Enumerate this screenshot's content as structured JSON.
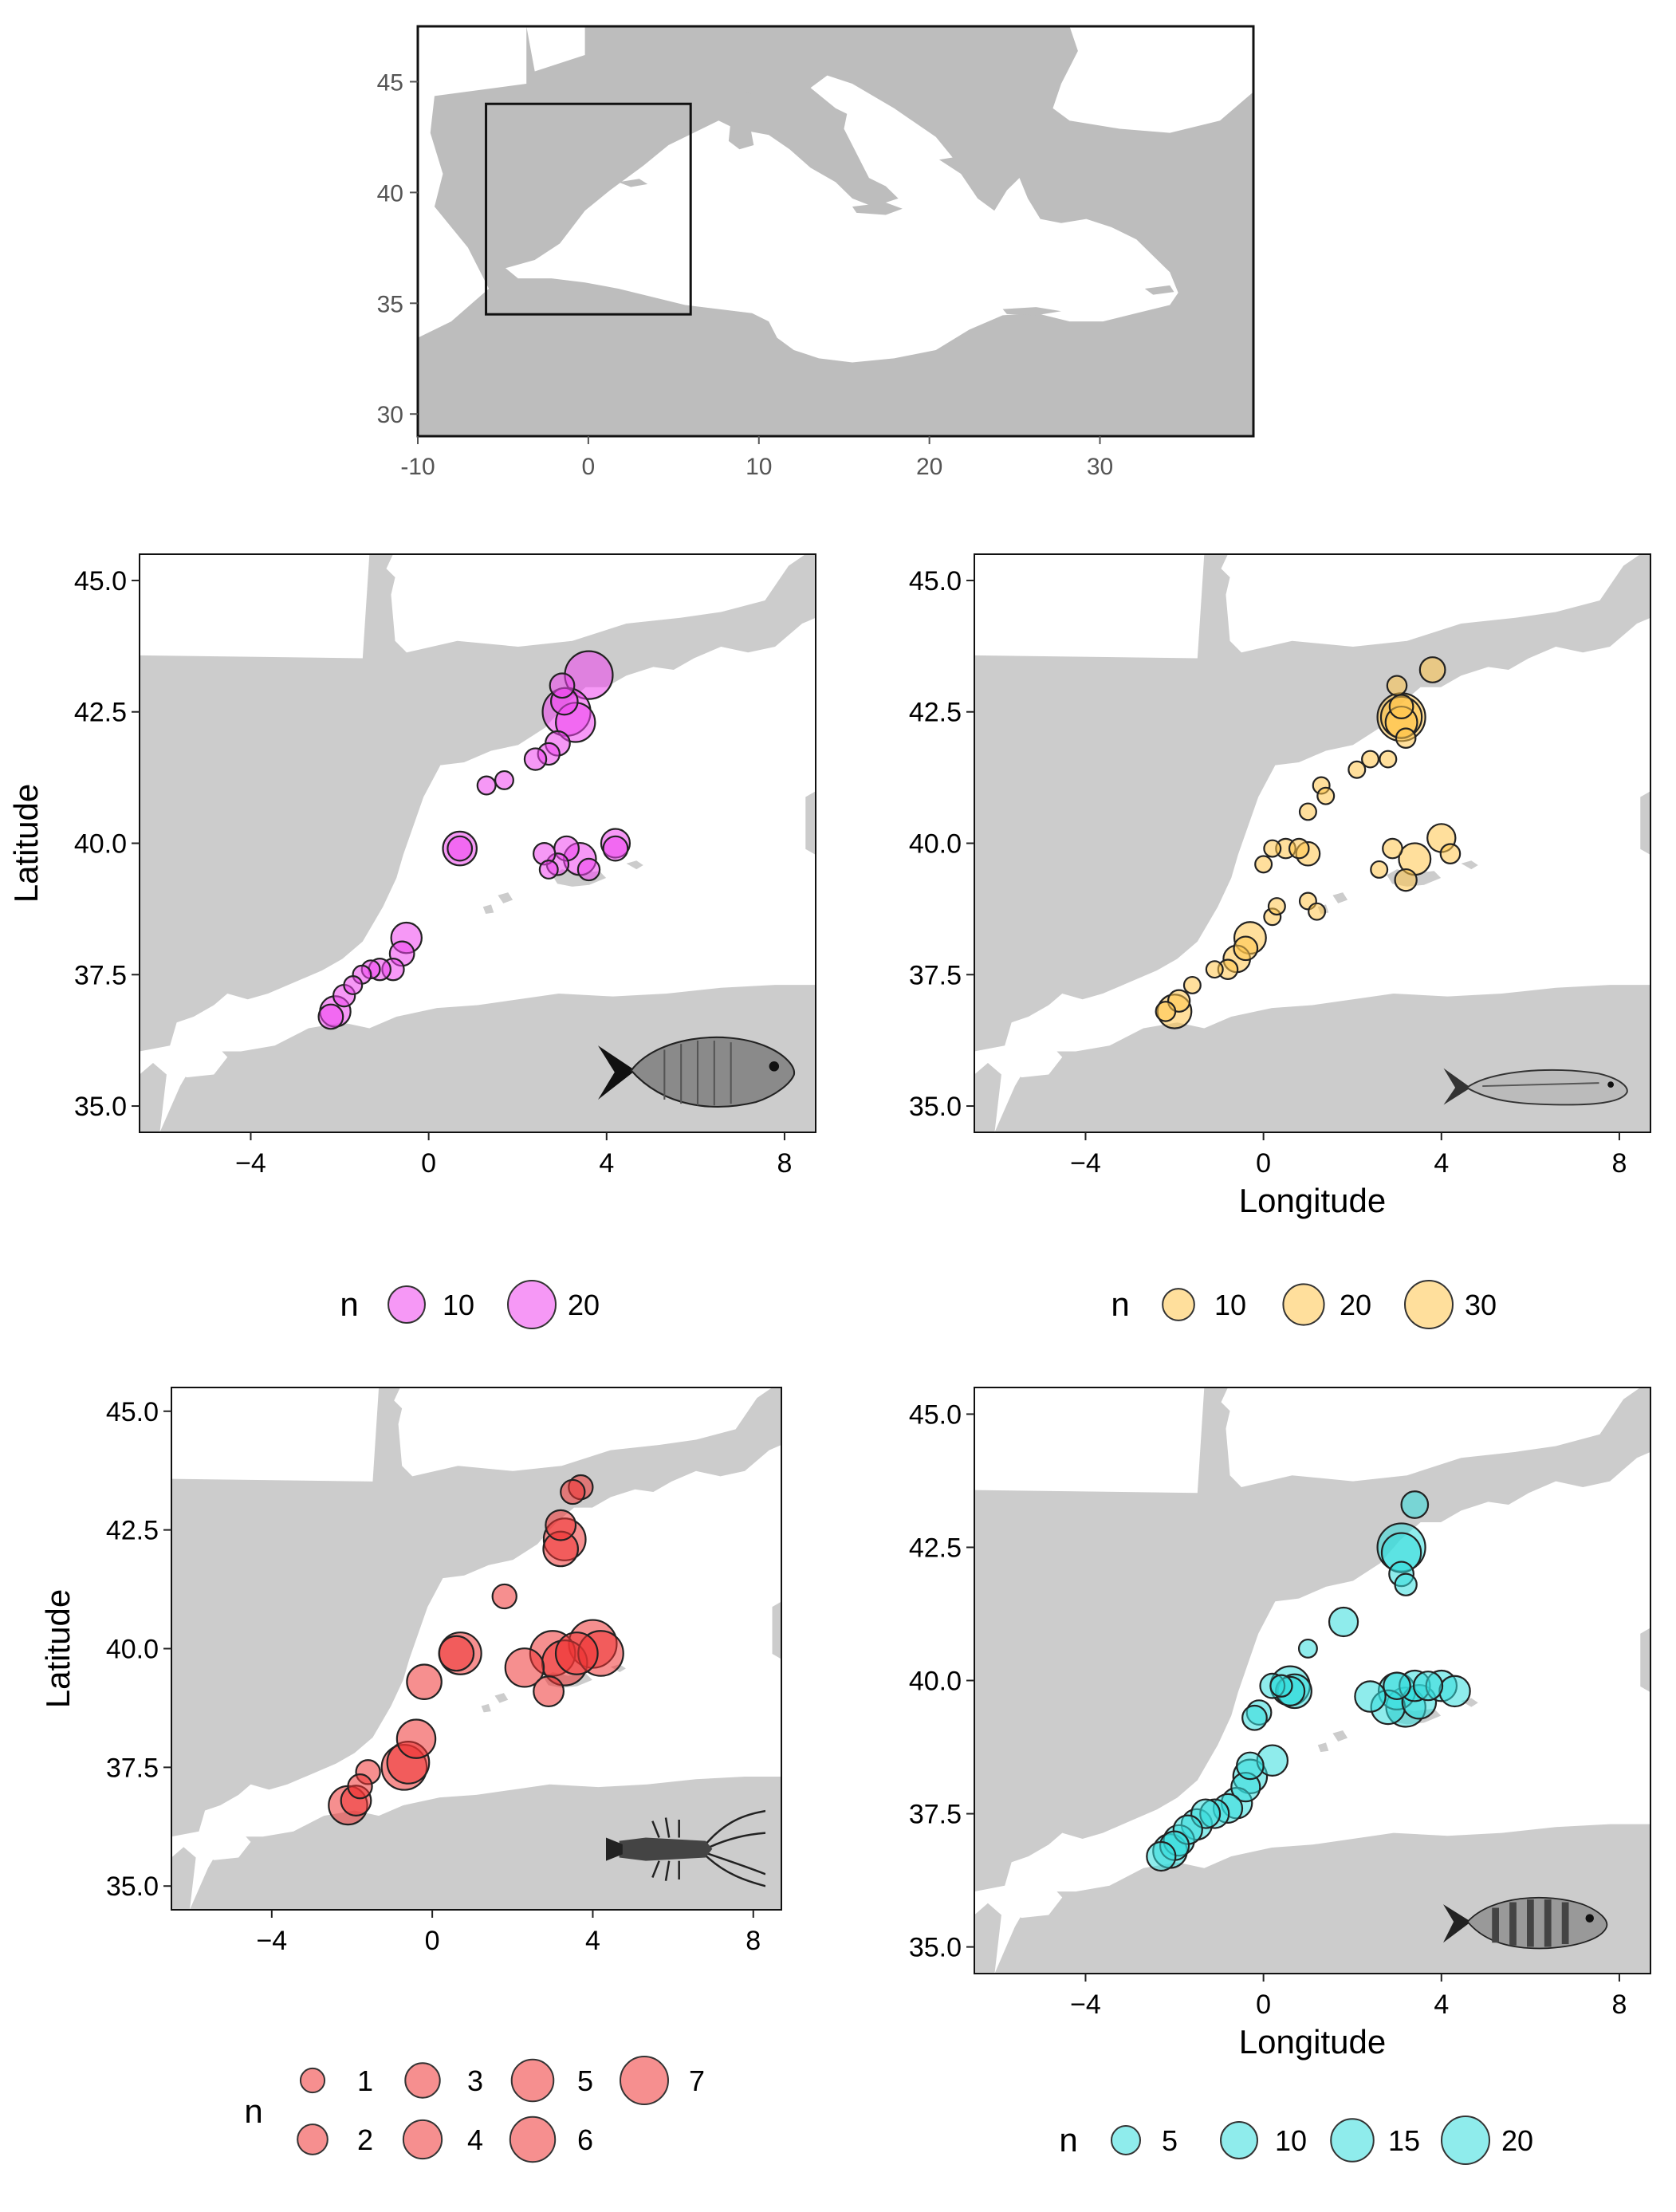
{
  "overview": {
    "x_ticks": [
      "-10",
      "0",
      "10",
      "20",
      "30"
    ],
    "y_ticks": [
      "30",
      "35",
      "40",
      "45"
    ],
    "lon_range": [
      -10,
      39
    ],
    "lat_range": [
      29,
      47.5
    ],
    "study_box": {
      "lon": [
        -6,
        6
      ],
      "lat": [
        34.5,
        44
      ]
    }
  },
  "panels": [
    {
      "id": "sparidae",
      "color": "#ee44ee",
      "silhouette": "seabream-icon",
      "x_ticks": [
        "−4",
        "0",
        "4",
        "8"
      ],
      "y_ticks": [
        "35.0",
        "37.5",
        "40.0",
        "42.5",
        "45.0"
      ],
      "ylabel": "Latitude",
      "xlabel": "",
      "legend": {
        "title": "n",
        "items": [
          {
            "label": "10",
            "n": 10
          },
          {
            "label": "20",
            "n": 20
          }
        ]
      },
      "points": [
        {
          "lon": 3.6,
          "lat": 43.2,
          "n": 20
        },
        {
          "lon": 3.1,
          "lat": 42.5,
          "n": 20
        },
        {
          "lon": 3.3,
          "lat": 42.3,
          "n": 12
        },
        {
          "lon": 3.0,
          "lat": 43.0,
          "n": 3
        },
        {
          "lon": 3.05,
          "lat": 42.7,
          "n": 4
        },
        {
          "lon": 2.9,
          "lat": 41.9,
          "n": 3
        },
        {
          "lon": 2.7,
          "lat": 41.7,
          "n": 2
        },
        {
          "lon": 2.4,
          "lat": 41.6,
          "n": 2
        },
        {
          "lon": 1.7,
          "lat": 41.2,
          "n": 1
        },
        {
          "lon": 1.3,
          "lat": 41.1,
          "n": 1
        },
        {
          "lon": 0.7,
          "lat": 39.9,
          "n": 8
        },
        {
          "lon": 0.7,
          "lat": 39.9,
          "n": 3
        },
        {
          "lon": 3.4,
          "lat": 39.7,
          "n": 7
        },
        {
          "lon": 3.1,
          "lat": 39.9,
          "n": 3
        },
        {
          "lon": 2.9,
          "lat": 39.6,
          "n": 2
        },
        {
          "lon": 3.6,
          "lat": 39.5,
          "n": 2
        },
        {
          "lon": 2.6,
          "lat": 39.8,
          "n": 2
        },
        {
          "lon": 2.7,
          "lat": 39.5,
          "n": 1
        },
        {
          "lon": 4.2,
          "lat": 40.0,
          "n": 5
        },
        {
          "lon": 4.2,
          "lat": 39.9,
          "n": 3
        },
        {
          "lon": -0.5,
          "lat": 38.2,
          "n": 6
        },
        {
          "lon": -0.6,
          "lat": 37.9,
          "n": 3
        },
        {
          "lon": -0.8,
          "lat": 37.6,
          "n": 2
        },
        {
          "lon": -1.1,
          "lat": 37.6,
          "n": 2
        },
        {
          "lon": -1.3,
          "lat": 37.6,
          "n": 1
        },
        {
          "lon": -1.5,
          "lat": 37.5,
          "n": 1
        },
        {
          "lon": -1.7,
          "lat": 37.3,
          "n": 1
        },
        {
          "lon": -1.9,
          "lat": 37.1,
          "n": 2
        },
        {
          "lon": -2.1,
          "lat": 36.8,
          "n": 6
        },
        {
          "lon": -2.2,
          "lat": 36.7,
          "n": 3
        }
      ]
    },
    {
      "id": "mullidae",
      "color": "#ffc54a",
      "silhouette": "mullet-icon",
      "x_ticks": [
        "−4",
        "0",
        "4",
        "8"
      ],
      "y_ticks": [
        "35.0",
        "37.5",
        "40.0",
        "42.5",
        "45.0"
      ],
      "ylabel": "",
      "xlabel": "Longitude",
      "legend": {
        "title": "n",
        "items": [
          {
            "label": "10",
            "n": 10
          },
          {
            "label": "20",
            "n": 20
          },
          {
            "label": "30",
            "n": 30
          }
        ]
      },
      "points": [
        {
          "lon": 3.1,
          "lat": 42.4,
          "n": 30
        },
        {
          "lon": 3.1,
          "lat": 42.4,
          "n": 20
        },
        {
          "lon": 3.1,
          "lat": 42.3,
          "n": 10
        },
        {
          "lon": 3.1,
          "lat": 42.6,
          "n": 4
        },
        {
          "lon": 3.0,
          "lat": 43.0,
          "n": 2
        },
        {
          "lon": 3.8,
          "lat": 43.3,
          "n": 5
        },
        {
          "lon": 3.2,
          "lat": 42.0,
          "n": 2
        },
        {
          "lon": 2.8,
          "lat": 41.6,
          "n": 1
        },
        {
          "lon": 2.4,
          "lat": 41.6,
          "n": 1
        },
        {
          "lon": 2.1,
          "lat": 41.4,
          "n": 1
        },
        {
          "lon": 1.3,
          "lat": 41.1,
          "n": 1
        },
        {
          "lon": 1.4,
          "lat": 40.9,
          "n": 1
        },
        {
          "lon": 1.0,
          "lat": 40.6,
          "n": 1
        },
        {
          "lon": 0.5,
          "lat": 39.9,
          "n": 2
        },
        {
          "lon": 0.2,
          "lat": 39.9,
          "n": 1
        },
        {
          "lon": 0.8,
          "lat": 39.9,
          "n": 2
        },
        {
          "lon": 1.0,
          "lat": 39.8,
          "n": 4
        },
        {
          "lon": 0.0,
          "lat": 39.6,
          "n": 1
        },
        {
          "lon": 3.4,
          "lat": 39.7,
          "n": 10
        },
        {
          "lon": 2.9,
          "lat": 39.9,
          "n": 2
        },
        {
          "lon": 3.2,
          "lat": 39.3,
          "n": 3
        },
        {
          "lon": 2.6,
          "lat": 39.5,
          "n": 1
        },
        {
          "lon": 4.0,
          "lat": 40.1,
          "n": 7
        },
        {
          "lon": 4.2,
          "lat": 39.8,
          "n": 2
        },
        {
          "lon": 0.2,
          "lat": 38.6,
          "n": 1
        },
        {
          "lon": -0.3,
          "lat": 38.2,
          "n": 10
        },
        {
          "lon": -0.4,
          "lat": 38.0,
          "n": 4
        },
        {
          "lon": 0.3,
          "lat": 38.8,
          "n": 1
        },
        {
          "lon": 1.0,
          "lat": 38.9,
          "n": 1
        },
        {
          "lon": 1.2,
          "lat": 38.7,
          "n": 1
        },
        {
          "lon": -0.6,
          "lat": 37.8,
          "n": 6
        },
        {
          "lon": -0.8,
          "lat": 37.6,
          "n": 2
        },
        {
          "lon": -1.1,
          "lat": 37.6,
          "n": 1
        },
        {
          "lon": -1.6,
          "lat": 37.3,
          "n": 1
        },
        {
          "lon": -1.9,
          "lat": 37.0,
          "n": 3
        },
        {
          "lon": -2.0,
          "lat": 36.8,
          "n": 12
        },
        {
          "lon": -2.2,
          "lat": 36.8,
          "n": 2
        }
      ]
    },
    {
      "id": "palinuridae",
      "color": "#ee3333",
      "silhouette": "lobster-icon",
      "x_ticks": [
        "−4",
        "0",
        "4",
        "8"
      ],
      "y_ticks": [
        "35.0",
        "37.5",
        "40.0",
        "42.5",
        "45.0"
      ],
      "ylabel": "Latitude",
      "xlabel": "",
      "legend": {
        "title": "n",
        "items": [
          {
            "label": "1",
            "n": 1
          },
          {
            "label": "3",
            "n": 3
          },
          {
            "label": "5",
            "n": 5
          },
          {
            "label": "7",
            "n": 7
          },
          {
            "label": "2",
            "n": 2
          },
          {
            "label": "4",
            "n": 4
          },
          {
            "label": "6",
            "n": 6
          }
        ]
      },
      "points": [
        {
          "lon": 3.7,
          "lat": 43.4,
          "n": 1
        },
        {
          "lon": 3.5,
          "lat": 43.3,
          "n": 1
        },
        {
          "lon": 3.2,
          "lat": 42.6,
          "n": 2
        },
        {
          "lon": 3.3,
          "lat": 42.3,
          "n": 5
        },
        {
          "lon": 3.2,
          "lat": 42.1,
          "n": 3
        },
        {
          "lon": 1.8,
          "lat": 41.1,
          "n": 1
        },
        {
          "lon": 0.7,
          "lat": 39.9,
          "n": 5
        },
        {
          "lon": 0.6,
          "lat": 39.9,
          "n": 3
        },
        {
          "lon": -0.2,
          "lat": 39.3,
          "n": 3
        },
        {
          "lon": 2.3,
          "lat": 39.6,
          "n": 4
        },
        {
          "lon": 3.0,
          "lat": 39.9,
          "n": 6
        },
        {
          "lon": 3.3,
          "lat": 39.7,
          "n": 6
        },
        {
          "lon": 3.6,
          "lat": 39.9,
          "n": 5
        },
        {
          "lon": 4.0,
          "lat": 40.1,
          "n": 7
        },
        {
          "lon": 4.2,
          "lat": 39.9,
          "n": 6
        },
        {
          "lon": 2.9,
          "lat": 39.1,
          "n": 2
        },
        {
          "lon": -0.4,
          "lat": 38.1,
          "n": 4
        },
        {
          "lon": -0.6,
          "lat": 37.6,
          "n": 5
        },
        {
          "lon": -0.7,
          "lat": 37.5,
          "n": 6
        },
        {
          "lon": -1.6,
          "lat": 37.4,
          "n": 1
        },
        {
          "lon": -1.8,
          "lat": 37.1,
          "n": 1
        },
        {
          "lon": -2.1,
          "lat": 36.7,
          "n": 4
        },
        {
          "lon": -1.9,
          "lat": 36.8,
          "n": 2
        }
      ]
    },
    {
      "id": "serranidae",
      "color": "#33dddd",
      "silhouette": "comber-icon",
      "x_ticks": [
        "−4",
        "0",
        "4",
        "8"
      ],
      "y_ticks": [
        "35.0",
        "37.5",
        "40.0",
        "42.5",
        "45.0"
      ],
      "ylabel": "",
      "xlabel": "Longitude",
      "legend": {
        "title": "n",
        "items": [
          {
            "label": "5",
            "n": 5
          },
          {
            "label": "10",
            "n": 10
          },
          {
            "label": "15",
            "n": 15
          },
          {
            "label": "20",
            "n": 20
          }
        ]
      },
      "points": [
        {
          "lon": 3.4,
          "lat": 43.3,
          "n": 4
        },
        {
          "lon": 3.1,
          "lat": 42.5,
          "n": 20
        },
        {
          "lon": 3.1,
          "lat": 42.4,
          "n": 12
        },
        {
          "lon": 3.1,
          "lat": 42.0,
          "n": 3
        },
        {
          "lon": 3.2,
          "lat": 41.8,
          "n": 2
        },
        {
          "lon": 1.8,
          "lat": 41.1,
          "n": 5
        },
        {
          "lon": 1.0,
          "lat": 40.6,
          "n": 1
        },
        {
          "lon": 0.6,
          "lat": 39.9,
          "n": 12
        },
        {
          "lon": 0.7,
          "lat": 39.8,
          "n": 8
        },
        {
          "lon": 0.2,
          "lat": 39.9,
          "n": 3
        },
        {
          "lon": 0.4,
          "lat": 39.9,
          "n": 2
        },
        {
          "lon": -0.1,
          "lat": 39.4,
          "n": 3
        },
        {
          "lon": -0.2,
          "lat": 39.3,
          "n": 3
        },
        {
          "lon": 2.4,
          "lat": 39.7,
          "n": 6
        },
        {
          "lon": 2.8,
          "lat": 39.5,
          "n": 8
        },
        {
          "lon": 3.0,
          "lat": 39.8,
          "n": 10
        },
        {
          "lon": 3.2,
          "lat": 39.5,
          "n": 12
        },
        {
          "lon": 3.5,
          "lat": 39.6,
          "n": 8
        },
        {
          "lon": 3.4,
          "lat": 39.9,
          "n": 6
        },
        {
          "lon": 3.7,
          "lat": 39.9,
          "n": 5
        },
        {
          "lon": 4.0,
          "lat": 39.9,
          "n": 6
        },
        {
          "lon": 4.3,
          "lat": 39.8,
          "n": 6
        },
        {
          "lon": 3.0,
          "lat": 39.9,
          "n": 4
        },
        {
          "lon": 0.2,
          "lat": 38.5,
          "n": 6
        },
        {
          "lon": -0.3,
          "lat": 38.2,
          "n": 8
        },
        {
          "lon": -0.4,
          "lat": 38.0,
          "n": 5
        },
        {
          "lon": -0.6,
          "lat": 37.7,
          "n": 6
        },
        {
          "lon": -0.8,
          "lat": 37.6,
          "n": 5
        },
        {
          "lon": -1.1,
          "lat": 37.5,
          "n": 5
        },
        {
          "lon": -1.3,
          "lat": 37.5,
          "n": 5
        },
        {
          "lon": -1.5,
          "lat": 37.3,
          "n": 6
        },
        {
          "lon": -1.7,
          "lat": 37.2,
          "n": 5
        },
        {
          "lon": -1.9,
          "lat": 37.0,
          "n": 6
        },
        {
          "lon": -2.0,
          "lat": 36.9,
          "n": 5
        },
        {
          "lon": -2.1,
          "lat": 36.8,
          "n": 8
        },
        {
          "lon": -2.3,
          "lat": 36.7,
          "n": 5
        },
        {
          "lon": -0.3,
          "lat": 38.4,
          "n": 4
        },
        {
          "lon": 0.6,
          "lat": 39.8,
          "n": 5
        }
      ]
    }
  ]
}
